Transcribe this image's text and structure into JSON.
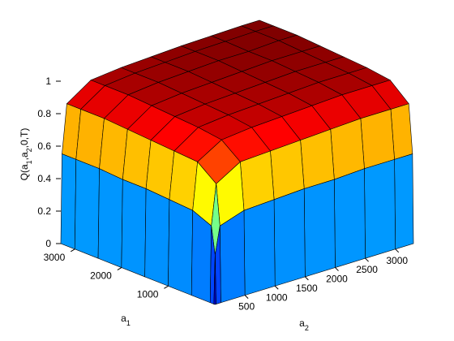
{
  "chart_data": {
    "type": "surface",
    "zlabel": "Q(a1,a2,0,T)",
    "xlabel": "a1",
    "ylabel": "a2",
    "x": [
      0,
      20,
      100,
      500,
      1000,
      1500,
      2000,
      2500,
      3000,
      3300
    ],
    "y": [
      0,
      20,
      100,
      500,
      1000,
      1500,
      2000,
      2500,
      3000,
      3300
    ],
    "z": [
      [
        0,
        0,
        0,
        0,
        0,
        0,
        0,
        0,
        0,
        0
      ],
      [
        0,
        0.3,
        0.47,
        0.52,
        0.53,
        0.54,
        0.54,
        0.55,
        0.55,
        0.55
      ],
      [
        0,
        0.47,
        0.72,
        0.81,
        0.82,
        0.83,
        0.84,
        0.85,
        0.85,
        0.85
      ],
      [
        0,
        0.52,
        0.81,
        0.9,
        0.92,
        0.93,
        0.94,
        0.95,
        0.95,
        0.95
      ],
      [
        0,
        0.53,
        0.82,
        0.92,
        0.94,
        0.95,
        0.96,
        0.97,
        0.97,
        0.97
      ],
      [
        0,
        0.54,
        0.83,
        0.93,
        0.95,
        0.96,
        0.97,
        0.98,
        0.98,
        0.98
      ],
      [
        0,
        0.54,
        0.84,
        0.94,
        0.96,
        0.97,
        0.98,
        0.99,
        0.99,
        0.99
      ],
      [
        0,
        0.55,
        0.85,
        0.95,
        0.97,
        0.98,
        0.99,
        0.99,
        1.0,
        1.0
      ],
      [
        0,
        0.55,
        0.85,
        0.95,
        0.97,
        0.98,
        0.99,
        0.995,
        1,
        1
      ],
      [
        0,
        0.55,
        0.85,
        0.95,
        0.97,
        0.98,
        0.99,
        0.995,
        1,
        1
      ]
    ],
    "xlim": [
      0,
      3300
    ],
    "ylim": [
      0,
      3300
    ],
    "zlim": [
      0,
      1
    ],
    "xticks": [
      1000,
      2000,
      3000
    ],
    "yticks": [
      500,
      1000,
      1500,
      2000,
      2500,
      3000
    ],
    "zticks": [
      0,
      0.2,
      0.4,
      0.6,
      0.8,
      1
    ],
    "colormap": "jet"
  }
}
